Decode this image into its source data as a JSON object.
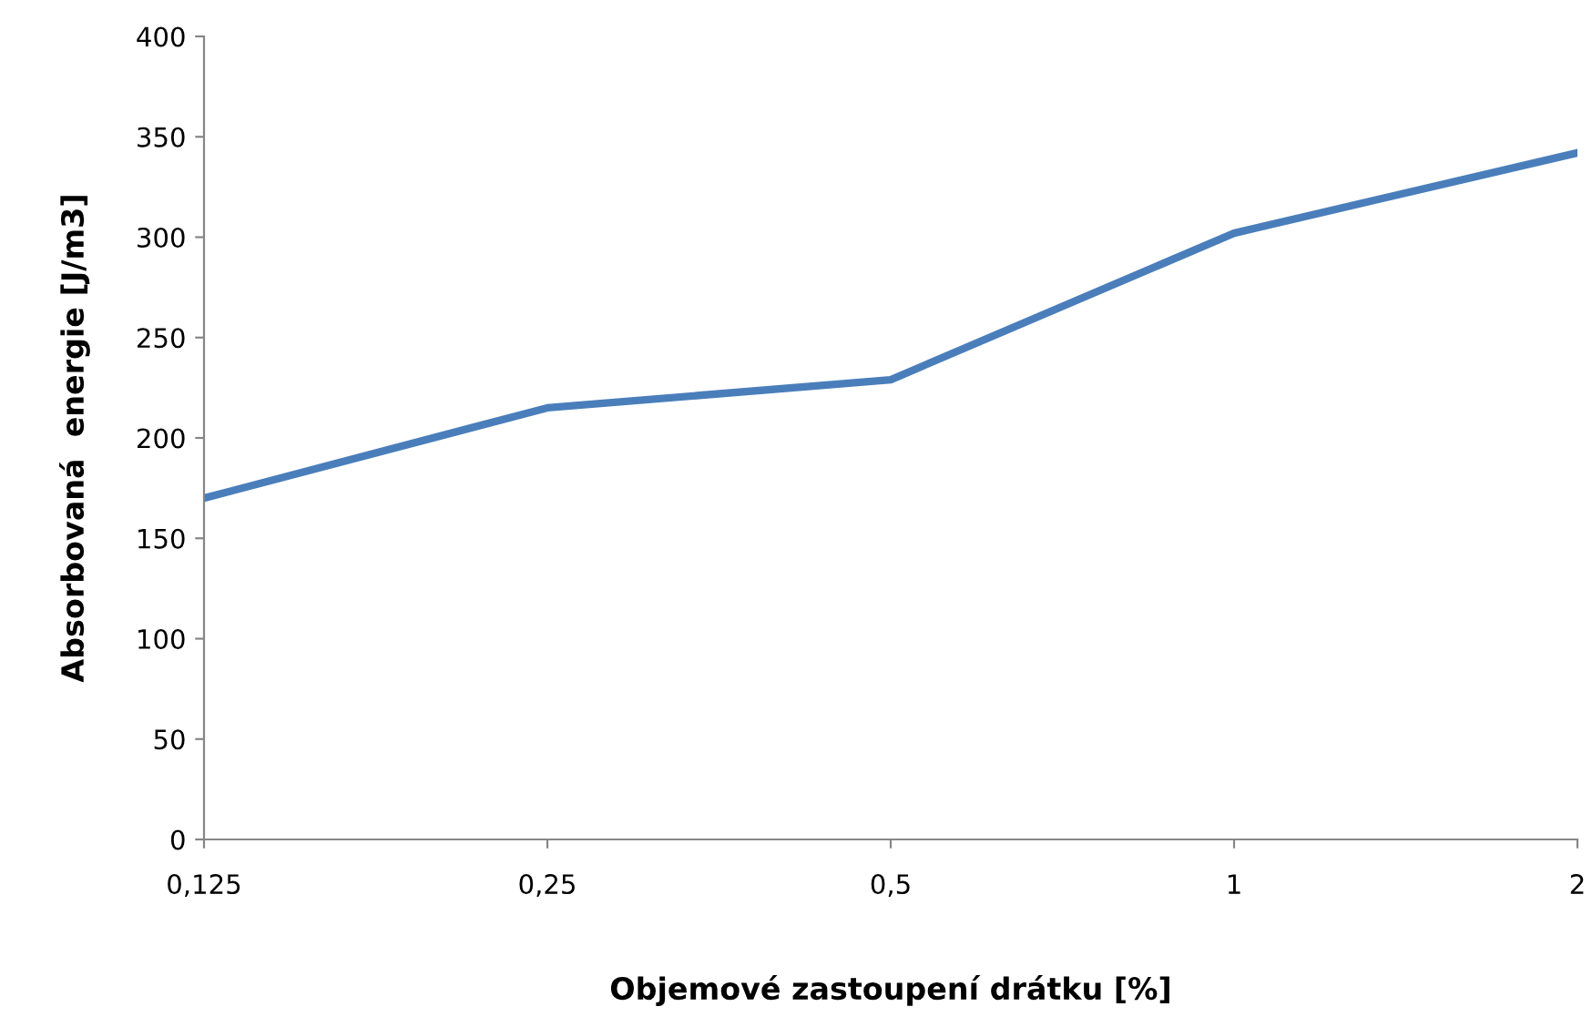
{
  "chart_data": {
    "type": "line",
    "xlabel": "Objemové zastoupení drátku [%]",
    "ylabel": "Absorbovaná  energie [J/m3]",
    "categories": [
      "0,125",
      "0,25",
      "0,5",
      "1",
      "2"
    ],
    "series": [
      {
        "color": "#4a7ebb",
        "values": [
          170,
          215,
          229,
          302,
          342
        ]
      }
    ],
    "ylim": [
      0,
      400
    ],
    "yticks": [
      0,
      50,
      100,
      150,
      200,
      250,
      300,
      350,
      400
    ],
    "grid": false,
    "legend": false,
    "marker": "none",
    "line_style": "solid"
  }
}
